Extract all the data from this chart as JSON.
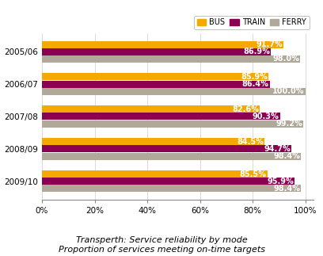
{
  "years": [
    "2005/06",
    "2006/07",
    "2007/08",
    "2008/09",
    "2009/10"
  ],
  "bus": [
    91.7,
    85.9,
    82.6,
    84.5,
    85.5
  ],
  "train": [
    86.9,
    86.4,
    90.3,
    94.7,
    95.9
  ],
  "ferry": [
    98.0,
    100.0,
    99.2,
    98.4,
    98.4
  ],
  "bus_color": "#F5A800",
  "train_color": "#8B0050",
  "ferry_color": "#B0A898",
  "bar_height": 0.22,
  "bar_gap": 0.005,
  "title_line1": "Transperth: Service reliability by mode",
  "title_line2": "Proportion of services meeting on-time targets",
  "legend_labels": [
    "BUS",
    "TRAIN",
    "FERRY"
  ],
  "xlabel_ticks": [
    0,
    20,
    40,
    60,
    80,
    100
  ],
  "xlabel_labels": [
    "0%",
    "20%",
    "40%",
    "60%",
    "80%",
    "100%"
  ],
  "xlim": [
    0,
    103
  ],
  "background_color": "#FFFFFF",
  "grid_color": "#CCCCCC",
  "title_fontsize": 8.0,
  "label_fontsize": 7.0,
  "tick_fontsize": 7.5,
  "legend_fontsize": 7.0
}
